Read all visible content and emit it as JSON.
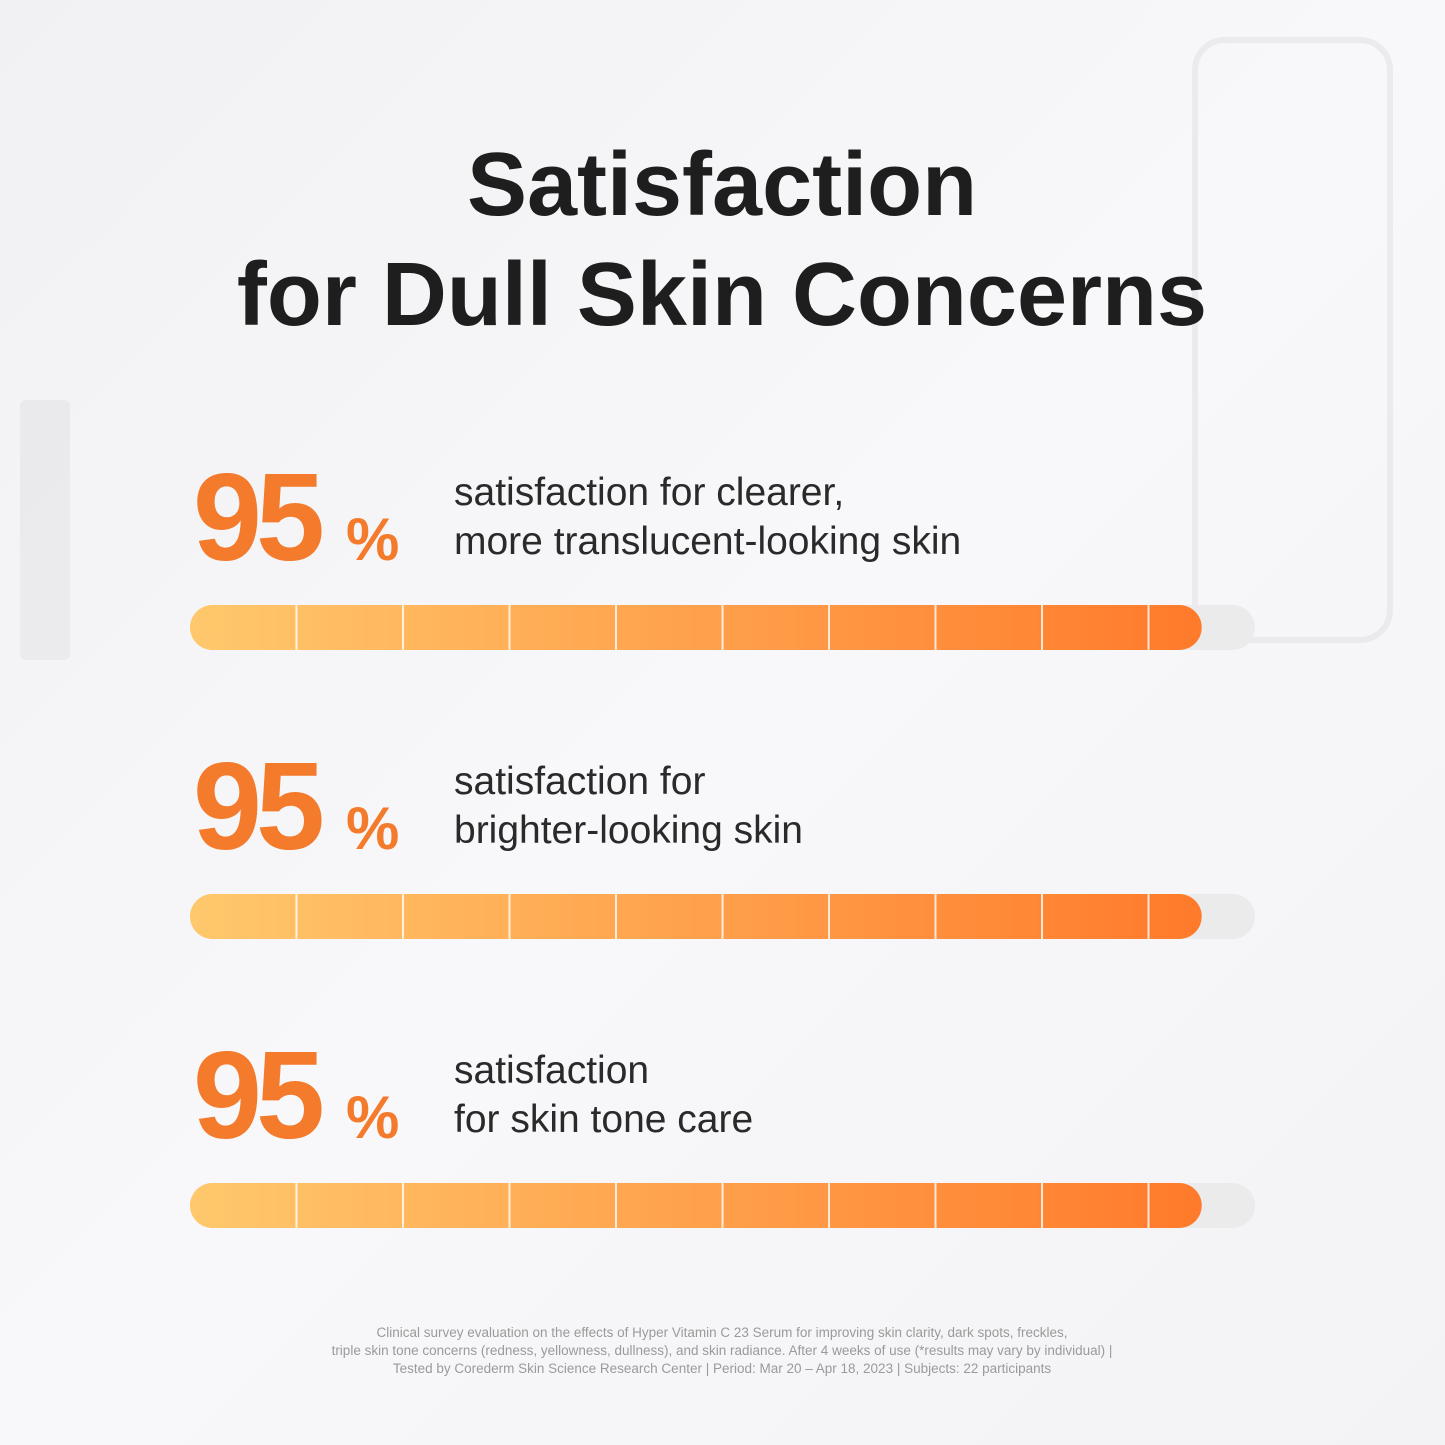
{
  "chart_data": {
    "type": "bar",
    "title": [
      "Satisfaction",
      "for Dull Skin Concerns"
    ],
    "categories": [
      [
        "satisfaction for clearer,",
        "more translucent-looking skin"
      ],
      [
        "satisfaction for",
        "brighter-looking skin"
      ],
      [
        "satisfaction",
        "for skin tone care"
      ]
    ],
    "values": [
      95,
      95,
      95
    ],
    "unit": "%",
    "xlim": [
      0,
      100
    ],
    "color": [
      "#ffc86c",
      "#ff7a2b"
    ],
    "track_color": "#ebebeb",
    "number_color": "#f47a2c",
    "footnote": [
      "Clinical survey evaluation on the effects of Hyper Vitamin C 23 Serum for improving skin clarity, dark spots, freckles,",
      "triple skin tone concerns (redness, yellowness, dullness), and skin radiance. After 4 weeks of use (*results may vary by individual) |",
      "Tested by Corederm Skin Science Research Center | Period: Mar 20 – Apr 18, 2023 | Subjects: 22 participants"
    ]
  }
}
